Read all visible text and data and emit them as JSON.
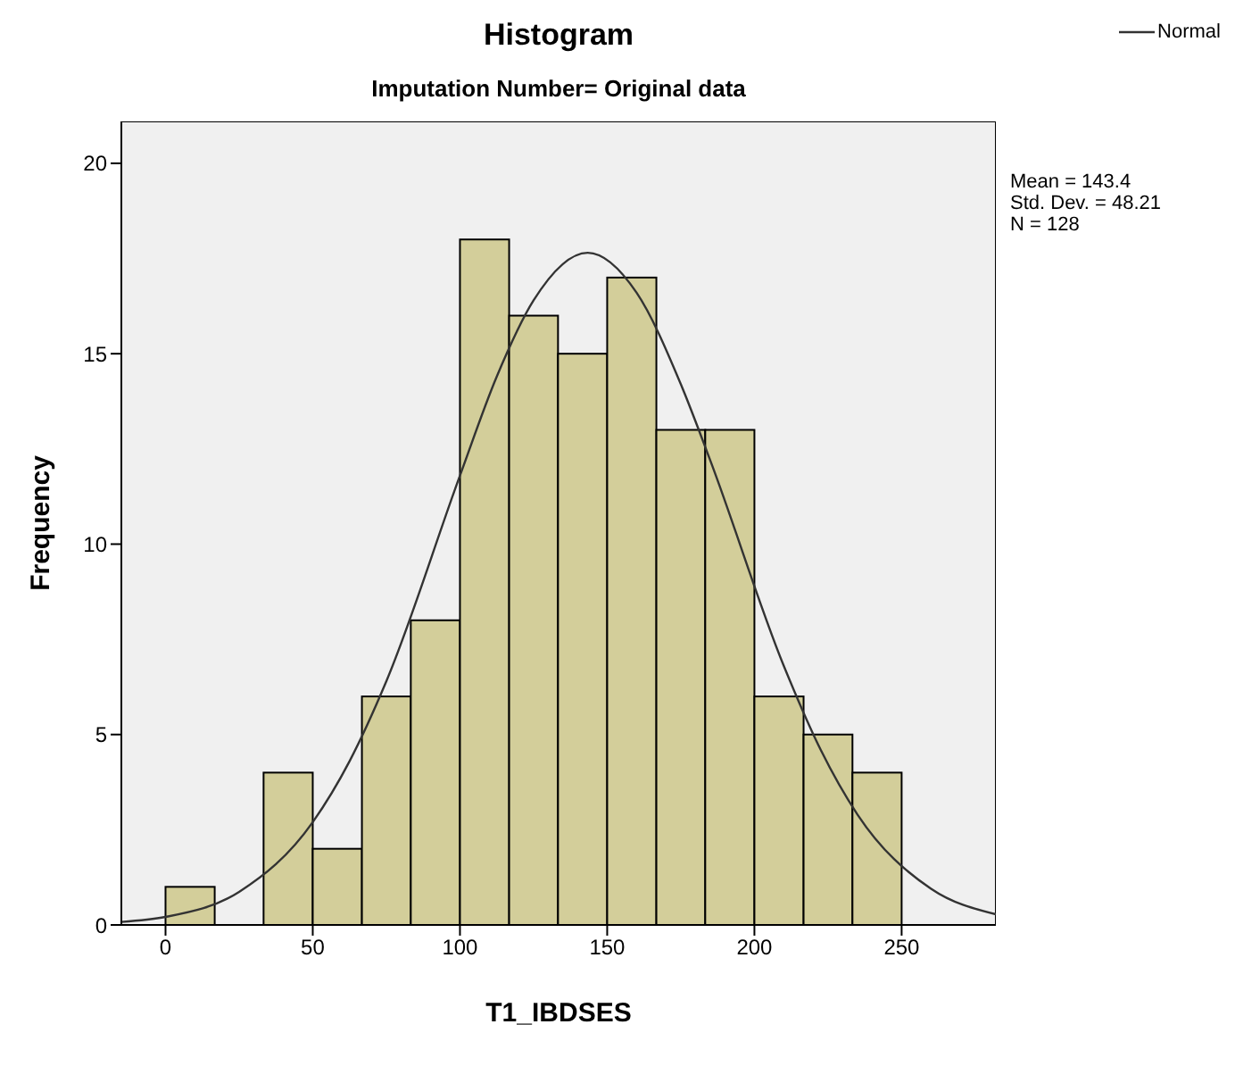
{
  "chart_data": {
    "type": "histogram",
    "title": "Histogram",
    "subtitle": "Imputation Number= Original data",
    "xlabel": "T1_IBDSES",
    "ylabel": "Frequency",
    "bins": [
      0,
      16.7,
      33.3,
      50,
      66.7,
      83.3,
      100,
      116.7,
      133.3,
      150,
      166.7,
      183.3,
      200,
      216.7,
      233.3,
      250
    ],
    "values": [
      1,
      0,
      4,
      2,
      6,
      8,
      18,
      16,
      15,
      17,
      13,
      13,
      6,
      5,
      4
    ],
    "color": "#d3ce9a",
    "xlim": [
      -15,
      282
    ],
    "xticks": [
      0,
      50,
      100,
      150,
      200,
      250
    ],
    "ylim": [
      0,
      21.1
    ],
    "yticks": [
      0,
      5,
      10,
      15,
      20
    ],
    "grid": false,
    "legend": "top right",
    "marker": "none",
    "line_style": "solid",
    "series": [
      {
        "name": "Normal",
        "type": "line",
        "color": "#333333",
        "x": [
          -15,
          0,
          25,
          50,
          62.5,
          75,
          100,
          112.5,
          125,
          143.4,
          160,
          175,
          185,
          210,
          222.5,
          235,
          260,
          282
        ],
        "values": [
          0.08,
          0.21,
          0.87,
          2.7,
          4.3,
          6.4,
          11.8,
          14.4,
          16.4,
          17.65,
          16.6,
          14.2,
          12.2,
          6.8,
          4.6,
          2.9,
          0.95,
          0.28
        ]
      }
    ],
    "annotations": [
      "Mean = 143.4",
      "Std. Dev. = 48.21",
      "N = 128"
    ]
  }
}
